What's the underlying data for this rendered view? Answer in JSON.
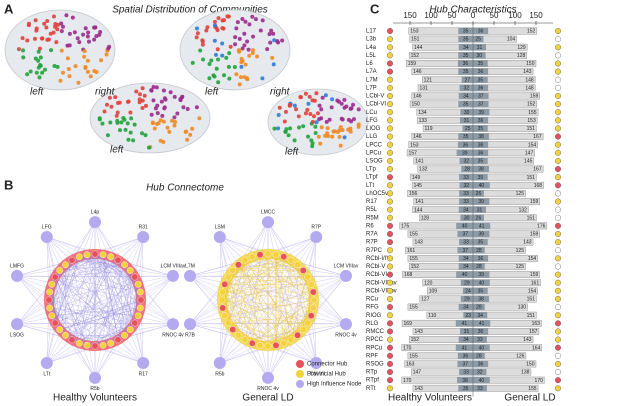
{
  "panels": {
    "a": {
      "letter": "A",
      "title": "Spatial Distribution of Communities",
      "side_labels": [
        "left",
        "right",
        "left",
        "left",
        "right",
        "left"
      ]
    },
    "b": {
      "letter": "B",
      "title": "Hub Connectome",
      "legend": [
        {
          "name": "Connector Hub",
          "color": "#e8505b"
        },
        {
          "name": "Provincial Hub",
          "color": "#f3d23c"
        },
        {
          "name": "High Influence Node",
          "color": "#b3aaf0"
        }
      ],
      "groups": [
        {
          "name": "Healthy Volunteers",
          "ring": "#ee5a66",
          "edges": "#8f86d8",
          "outer": [
            "L4p",
            "R31",
            "LCM VIIIav",
            "RNOC 4v",
            "R17",
            "R5b",
            "LTt",
            "LSOG",
            "LMFG",
            "LFG"
          ]
        },
        {
          "name": "General LD",
          "ring": "#f3d23c",
          "edges": "#e9c230",
          "outer": [
            "LMCC",
            "R7P",
            "LCM VIIIav",
            "RNOC 4v",
            "LCM VII",
            "RNOC 4v",
            "R5b",
            "R7B",
            "L7M",
            "LSM"
          ]
        }
      ]
    }
  },
  "chart_data": {
    "type": "butterfly",
    "letter": "C",
    "title": "Hub Characteristics",
    "left_name": "Healthy Volunteers",
    "right_name": "General LD",
    "xlim": [
      0,
      150
    ],
    "xticks_left": [
      150,
      100,
      50,
      0
    ],
    "xticks_right": [
      50,
      100,
      150
    ],
    "bar_color": "#dcdcdc",
    "inner_color": "#8d9ba6",
    "rows": [
      {
        "label": "L17",
        "hv": 153,
        "hv_inner": 35,
        "gld_inner": 36,
        "gld": 152,
        "hv_color": "#e8505b",
        "gld_color": "#f3d23c"
      },
      {
        "label": "L3b",
        "hv": 151,
        "hv_inner": 35,
        "gld_inner": 25,
        "gld": 104,
        "hv_color": "#f3d23c",
        "gld_color": "#ffffff"
      },
      {
        "label": "L4a",
        "hv": 144,
        "hv_inner": 34,
        "gld_inner": 31,
        "gld": 129,
        "hv_color": "#f3d23c",
        "gld_color": "#f3d23c"
      },
      {
        "label": "L5L",
        "hv": 152,
        "hv_inner": 35,
        "gld_inner": 30,
        "gld": 128,
        "hv_color": "#f3d23c",
        "gld_color": "#ffffff"
      },
      {
        "label": "L6",
        "hv": 159,
        "hv_inner": 36,
        "gld_inner": 35,
        "gld": 150,
        "hv_color": "#e8505b",
        "gld_color": "#f3d23c"
      },
      {
        "label": "L7A",
        "hv": 146,
        "hv_inner": 35,
        "gld_inner": 36,
        "gld": 143,
        "hv_color": "#e8505b",
        "gld_color": "#f3d23c"
      },
      {
        "label": "L7M",
        "hv": 121,
        "hv_inner": 27,
        "gld_inner": 35,
        "gld": 148,
        "hv_color": "#f3d23c",
        "gld_color": "#ffffff"
      },
      {
        "label": "L7P",
        "hv": 131,
        "hv_inner": 32,
        "gld_inner": 36,
        "gld": 148,
        "hv_color": "#f3d23c",
        "gld_color": "#ffffff"
      },
      {
        "label": "LCbl-V",
        "hv": 146,
        "hv_inner": 34,
        "gld_inner": 37,
        "gld": 159,
        "hv_color": "#f3d23c",
        "gld_color": "#f3d23c"
      },
      {
        "label": "LCbl-VI",
        "hv": 150,
        "hv_inner": 35,
        "gld_inner": 37,
        "gld": 152,
        "hv_color": "#f3d23c",
        "gld_color": "#f3d23c"
      },
      {
        "label": "LCu",
        "hv": 134,
        "hv_inner": 30,
        "gld_inner": 39,
        "gld": 155,
        "hv_color": "#f3d23c",
        "gld_color": "#f3d23c"
      },
      {
        "label": "LFG",
        "hv": 133,
        "hv_inner": 31,
        "gld_inner": 36,
        "gld": 153,
        "hv_color": "#f3d23c",
        "gld_color": "#f3d23c"
      },
      {
        "label": "LIOG",
        "hv": 119,
        "hv_inner": 25,
        "gld_inner": 35,
        "gld": 151,
        "hv_color": "#f3d23c",
        "gld_color": "#f3d23c"
      },
      {
        "label": "LLG",
        "hv": 146,
        "hv_inner": 35,
        "gld_inner": 38,
        "gld": 167,
        "hv_color": "#f3d23c",
        "gld_color": "#e8505b"
      },
      {
        "label": "LPCC",
        "hv": 153,
        "hv_inner": 36,
        "gld_inner": 36,
        "gld": 154,
        "hv_color": "#f3d23c",
        "gld_color": "#f3d23c"
      },
      {
        "label": "LPCu",
        "hv": 157,
        "hv_inner": 39,
        "gld_inner": 36,
        "gld": 147,
        "hv_color": "#f3d23c",
        "gld_color": "#f3d23c"
      },
      {
        "label": "LSOG",
        "hv": 141,
        "hv_inner": 32,
        "gld_inner": 35,
        "gld": 145,
        "hv_color": "#f3d23c",
        "gld_color": "#f3d23c"
      },
      {
        "label": "LTp",
        "hv": 132,
        "hv_inner": 28,
        "gld_inner": 38,
        "gld": 167,
        "hv_color": "#f3d23c",
        "gld_color": "#e8505b"
      },
      {
        "label": "LTpf",
        "hv": 149,
        "hv_inner": 33,
        "gld_inner": 35,
        "gld": 151,
        "hv_color": "#e8505b",
        "gld_color": "#f3d23c"
      },
      {
        "label": "LTt",
        "hv": 145,
        "hv_inner": 32,
        "gld_inner": 40,
        "gld": 168,
        "hv_color": "#f3d23c",
        "gld_color": "#e8505b"
      },
      {
        "label": "LhOC5v",
        "hv": 156,
        "hv_inner": 33,
        "gld_inner": 26,
        "gld": 125,
        "hv_color": "#f3d23c",
        "gld_color": "#ffffff"
      },
      {
        "label": "R17",
        "hv": 141,
        "hv_inner": 33,
        "gld_inner": 39,
        "gld": 159,
        "hv_color": "#f3d23c",
        "gld_color": "#f3d23c"
      },
      {
        "label": "R5L",
        "hv": 144,
        "hv_inner": 34,
        "gld_inner": 31,
        "gld": 132,
        "hv_color": "#f3d23c",
        "gld_color": "#ffffff"
      },
      {
        "label": "R5M",
        "hv": 128,
        "hv_inner": 30,
        "gld_inner": 26,
        "gld": 151,
        "hv_color": "#f3d23c",
        "gld_color": "#ffffff"
      },
      {
        "label": "R6",
        "hv": 175,
        "hv_inner": 40,
        "gld_inner": 41,
        "gld": 176,
        "hv_color": "#e8505b",
        "gld_color": "#e8505b"
      },
      {
        "label": "R7A",
        "hv": 155,
        "hv_inner": 37,
        "gld_inner": 39,
        "gld": 159,
        "hv_color": "#e8505b",
        "gld_color": "#f3d23c"
      },
      {
        "label": "R7P",
        "hv": 143,
        "hv_inner": 33,
        "gld_inner": 35,
        "gld": 143,
        "hv_color": "#e8505b",
        "gld_color": "#f3d23c"
      },
      {
        "label": "R7PC",
        "hv": 161,
        "hv_inner": 37,
        "gld_inner": 28,
        "gld": 125,
        "hv_color": "#f3d23c",
        "gld_color": "#ffffff"
      },
      {
        "label": "RCbl-I/IV",
        "hv": 155,
        "hv_inner": 34,
        "gld_inner": 36,
        "gld": 154,
        "hv_color": "#f3d23c",
        "gld_color": "#f3d23c"
      },
      {
        "label": "RCbl-V",
        "hv": 152,
        "hv_inner": 34,
        "gld_inner": 28,
        "gld": 125,
        "hv_color": "#f3d23c",
        "gld_color": "#ffffff"
      },
      {
        "label": "RCbl-VI",
        "hv": 168,
        "hv_inner": 40,
        "gld_inner": 39,
        "gld": 159,
        "hv_color": "#e8505b",
        "gld_color": "#f3d23c"
      },
      {
        "label": "RCbl-VIIIav",
        "hv": 120,
        "hv_inner": 29,
        "gld_inner": 40,
        "gld": 161,
        "hv_color": "#f3d23c",
        "gld_color": "#f3d23c"
      },
      {
        "label": "RCbl-VIIIbv",
        "hv": 109,
        "hv_inner": 24,
        "gld_inner": 35,
        "gld": 154,
        "hv_color": "#f3d23c",
        "gld_color": "#f3d23c"
      },
      {
        "label": "RCu",
        "hv": 127,
        "hv_inner": 29,
        "gld_inner": 38,
        "gld": 151,
        "hv_color": "#f3d23c",
        "gld_color": "#f3d23c"
      },
      {
        "label": "RFG",
        "hv": 155,
        "hv_inner": 34,
        "gld_inner": 28,
        "gld": 130,
        "hv_color": "#e8505b",
        "gld_color": "#ffffff"
      },
      {
        "label": "RIOG",
        "hv": 110,
        "hv_inner": 23,
        "gld_inner": 34,
        "gld": 151,
        "hv_color": "#f3d23c",
        "gld_color": "#f3d23c"
      },
      {
        "label": "RLG",
        "hv": 169,
        "hv_inner": 41,
        "gld_inner": 41,
        "gld": 163,
        "hv_color": "#e8505b",
        "gld_color": "#e8505b"
      },
      {
        "label": "RMCC",
        "hv": 143,
        "hv_inner": 31,
        "gld_inner": 36,
        "gld": 157,
        "hv_color": "#e8505b",
        "gld_color": "#f3d23c"
      },
      {
        "label": "RPCC",
        "hv": 152,
        "hv_inner": 34,
        "gld_inner": 33,
        "gld": 143,
        "hv_color": "#f3d23c",
        "gld_color": "#f3d23c"
      },
      {
        "label": "RPCu",
        "hv": 170,
        "hv_inner": 41,
        "gld_inner": 40,
        "gld": 164,
        "hv_color": "#e8505b",
        "gld_color": "#e8505b"
      },
      {
        "label": "RPF",
        "hv": 155,
        "hv_inner": 36,
        "gld_inner": 28,
        "gld": 126,
        "hv_color": "#e8505b",
        "gld_color": "#ffffff"
      },
      {
        "label": "RSOG",
        "hv": 163,
        "hv_inner": 37,
        "gld_inner": 36,
        "gld": 150,
        "hv_color": "#e8505b",
        "gld_color": "#f3d23c"
      },
      {
        "label": "RTp",
        "hv": 147,
        "hv_inner": 33,
        "gld_inner": 32,
        "gld": 138,
        "hv_color": "#e8505b",
        "gld_color": "#ffffff"
      },
      {
        "label": "RTpf",
        "hv": 170,
        "hv_inner": 38,
        "gld_inner": 40,
        "gld": 170,
        "hv_color": "#e8505b",
        "gld_color": "#e8505b"
      },
      {
        "label": "RTt",
        "hv": 143,
        "hv_inner": 35,
        "gld_inner": 33,
        "gld": 155,
        "hv_color": "#f3d23c",
        "gld_color": "#f3d23c"
      }
    ]
  }
}
